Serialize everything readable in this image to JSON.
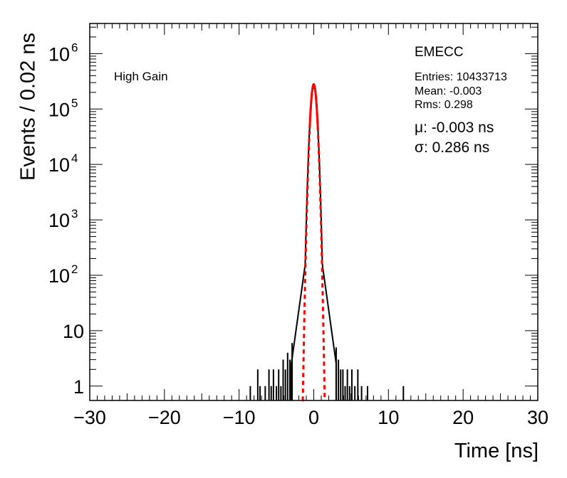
{
  "chart_data": {
    "type": "histogram",
    "title": "",
    "xlabel": "Time [ns]",
    "ylabel": "Events / 0.02 ns",
    "xlim": [
      -30,
      30
    ],
    "ylim": [
      0.55,
      3500000
    ],
    "yscale": "log",
    "grid": false,
    "x_ticks": [
      {
        "value": -30,
        "label": "−30"
      },
      {
        "value": -20,
        "label": "−20"
      },
      {
        "value": -10,
        "label": "−10"
      },
      {
        "value": 0,
        "label": "0"
      },
      {
        "value": 10,
        "label": "10"
      },
      {
        "value": 20,
        "label": "20"
      },
      {
        "value": 30,
        "label": "30"
      }
    ],
    "y_ticks": [
      {
        "value": 1,
        "base": "1",
        "exp": ""
      },
      {
        "value": 10,
        "base": "10",
        "exp": ""
      },
      {
        "value": 100,
        "base": "10",
        "exp": "2"
      },
      {
        "value": 1000,
        "base": "10",
        "exp": "3"
      },
      {
        "value": 10000,
        "base": "10",
        "exp": "4"
      },
      {
        "value": 100000,
        "base": "10",
        "exp": "5"
      },
      {
        "value": 1000000,
        "base": "10",
        "exp": "6"
      }
    ],
    "histogram": {
      "color": "#000000",
      "core_peak": 250000,
      "core_sigma": 0.3,
      "tail_points": [
        [
          -3,
          8
        ],
        [
          -4,
          3
        ],
        [
          -5,
          1.5
        ],
        [
          3,
          8
        ],
        [
          4,
          3
        ],
        [
          5,
          1.5
        ]
      ],
      "sparse_bins": [
        [
          -8.5,
          1
        ],
        [
          -7.5,
          2
        ],
        [
          -7.2,
          1
        ],
        [
          -6.5,
          1
        ],
        [
          -6.0,
          2
        ],
        [
          -5.7,
          1
        ],
        [
          -5.4,
          2
        ],
        [
          -5.0,
          1
        ],
        [
          -4.7,
          2
        ],
        [
          -4.4,
          1
        ],
        [
          -4.1,
          3
        ],
        [
          -3.8,
          2
        ],
        [
          -3.5,
          4
        ],
        [
          -3.2,
          3
        ],
        [
          -2.9,
          6
        ],
        [
          3.0,
          5
        ],
        [
          3.3,
          3
        ],
        [
          3.6,
          2
        ],
        [
          3.9,
          2
        ],
        [
          4.2,
          1
        ],
        [
          4.5,
          2
        ],
        [
          4.8,
          1
        ],
        [
          5.1,
          2
        ],
        [
          5.5,
          1
        ],
        [
          5.9,
          2
        ],
        [
          6.4,
          1
        ],
        [
          7.2,
          1
        ],
        [
          12,
          1
        ]
      ]
    },
    "fit": {
      "color": "#ff0000",
      "mu": -0.003,
      "sigma": 0.286,
      "amplitude": 280000,
      "solid_range": [
        -0.55,
        0.55
      ],
      "dashed_range": [
        -1.5,
        1.5
      ]
    },
    "annotations": {
      "gain": "High Gain",
      "stats_title": "EMECC",
      "entries": "Entries: 10433713",
      "mean": "Mean: -0.003",
      "rms": "Rms: 0.298",
      "fit_mu": "μ: -0.003 ns",
      "fit_sigma": "σ: 0.286 ns"
    }
  }
}
